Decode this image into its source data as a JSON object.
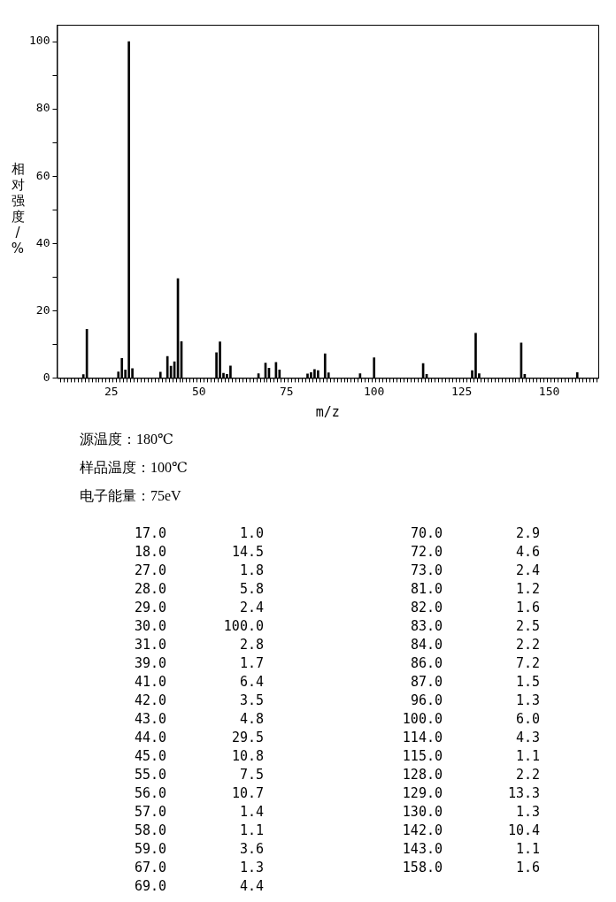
{
  "chart_data": [
    {
      "type": "bar",
      "xlabel": "m/z",
      "ylabel": "相对强度/%",
      "x": [
        17,
        18,
        27,
        28,
        29,
        30,
        31,
        39,
        41,
        42,
        43,
        44,
        45,
        55,
        56,
        57,
        58,
        59,
        67,
        69,
        70,
        72,
        73,
        81,
        82,
        83,
        84,
        86,
        87,
        96,
        100,
        114,
        115,
        128,
        129,
        130,
        142,
        143,
        158
      ],
      "values": [
        1.0,
        14.5,
        1.8,
        5.8,
        2.4,
        100.0,
        2.8,
        1.7,
        6.4,
        3.5,
        4.8,
        29.5,
        10.8,
        7.5,
        10.7,
        1.4,
        1.1,
        3.6,
        1.3,
        4.4,
        2.9,
        4.6,
        2.4,
        1.2,
        1.6,
        2.5,
        2.2,
        7.2,
        1.5,
        1.3,
        6.0,
        4.3,
        1.1,
        2.2,
        13.3,
        1.3,
        10.4,
        1.1,
        1.6
      ],
      "color": "#000000",
      "xlim": [
        10,
        163.5
      ],
      "ylim": [
        0,
        105
      ],
      "yticks": [
        0,
        {
          "value": 10,
          "label": null
        },
        20,
        {
          "value": 30,
          "label": null
        },
        40,
        {
          "value": 50,
          "label": null
        },
        60,
        {
          "value": 70,
          "label": null
        },
        80,
        {
          "value": 90,
          "label": null
        },
        100
      ],
      "xticks": [
        {
          "value": 11,
          "label": null
        },
        {
          "value": 12,
          "label": null
        },
        {
          "value": 13,
          "label": null
        },
        {
          "value": 14,
          "label": null
        },
        {
          "value": 15,
          "label": null
        },
        {
          "value": 16,
          "label": null
        },
        {
          "value": 17,
          "label": null
        },
        {
          "value": 18,
          "label": null
        },
        {
          "value": 19,
          "label": null
        },
        {
          "value": 20,
          "label": null
        },
        {
          "value": 21,
          "label": null
        },
        {
          "value": 22,
          "label": null
        },
        {
          "value": 23,
          "label": null
        },
        {
          "value": 24,
          "label": null
        },
        25,
        {
          "value": 26,
          "label": null
        },
        {
          "value": 27,
          "label": null
        },
        {
          "value": 28,
          "label": null
        },
        {
          "value": 29,
          "label": null
        },
        {
          "value": 30,
          "label": null
        },
        {
          "value": 31,
          "label": null
        },
        {
          "value": 32,
          "label": null
        },
        {
          "value": 33,
          "label": null
        },
        {
          "value": 34,
          "label": null
        },
        {
          "value": 35,
          "label": null
        },
        {
          "value": 36,
          "label": null
        },
        {
          "value": 37,
          "label": null
        },
        {
          "value": 38,
          "label": null
        },
        {
          "value": 39,
          "label": null
        },
        {
          "value": 40,
          "label": null
        },
        {
          "value": 41,
          "label": null
        },
        {
          "value": 42,
          "label": null
        },
        {
          "value": 43,
          "label": null
        },
        {
          "value": 44,
          "label": null
        },
        {
          "value": 45,
          "label": null
        },
        {
          "value": 46,
          "label": null
        },
        {
          "value": 47,
          "label": null
        },
        {
          "value": 48,
          "label": null
        },
        {
          "value": 49,
          "label": null
        },
        50,
        {
          "value": 51,
          "label": null
        },
        {
          "value": 52,
          "label": null
        },
        {
          "value": 53,
          "label": null
        },
        {
          "value": 54,
          "label": null
        },
        {
          "value": 55,
          "label": null
        },
        {
          "value": 56,
          "label": null
        },
        {
          "value": 57,
          "label": null
        },
        {
          "value": 58,
          "label": null
        },
        {
          "value": 59,
          "label": null
        },
        {
          "value": 60,
          "label": null
        },
        {
          "value": 61,
          "label": null
        },
        {
          "value": 62,
          "label": null
        },
        {
          "value": 63,
          "label": null
        },
        {
          "value": 64,
          "label": null
        },
        {
          "value": 65,
          "label": null
        },
        {
          "value": 66,
          "label": null
        },
        {
          "value": 67,
          "label": null
        },
        {
          "value": 68,
          "label": null
        },
        {
          "value": 69,
          "label": null
        },
        {
          "value": 70,
          "label": null
        },
        {
          "value": 71,
          "label": null
        },
        {
          "value": 72,
          "label": null
        },
        {
          "value": 73,
          "label": null
        },
        {
          "value": 74,
          "label": null
        },
        75,
        {
          "value": 76,
          "label": null
        },
        {
          "value": 77,
          "label": null
        },
        {
          "value": 78,
          "label": null
        },
        {
          "value": 79,
          "label": null
        },
        {
          "value": 80,
          "label": null
        },
        {
          "value": 81,
          "label": null
        },
        {
          "value": 82,
          "label": null
        },
        {
          "value": 83,
          "label": null
        },
        {
          "value": 84,
          "label": null
        },
        {
          "value": 85,
          "label": null
        },
        {
          "value": 86,
          "label": null
        },
        {
          "value": 87,
          "label": null
        },
        {
          "value": 88,
          "label": null
        },
        {
          "value": 89,
          "label": null
        },
        {
          "value": 90,
          "label": null
        },
        {
          "value": 91,
          "label": null
        },
        {
          "value": 92,
          "label": null
        },
        {
          "value": 93,
          "label": null
        },
        {
          "value": 94,
          "label": null
        },
        {
          "value": 95,
          "label": null
        },
        {
          "value": 96,
          "label": null
        },
        {
          "value": 97,
          "label": null
        },
        {
          "value": 98,
          "label": null
        },
        {
          "value": 99,
          "label": null
        },
        100,
        {
          "value": 101,
          "label": null
        },
        {
          "value": 102,
          "label": null
        },
        {
          "value": 103,
          "label": null
        },
        {
          "value": 104,
          "label": null
        },
        {
          "value": 105,
          "label": null
        },
        {
          "value": 106,
          "label": null
        },
        {
          "value": 107,
          "label": null
        },
        {
          "value": 108,
          "label": null
        },
        {
          "value": 109,
          "label": null
        },
        {
          "value": 110,
          "label": null
        },
        {
          "value": 111,
          "label": null
        },
        {
          "value": 112,
          "label": null
        },
        {
          "value": 113,
          "label": null
        },
        {
          "value": 114,
          "label": null
        },
        {
          "value": 115,
          "label": null
        },
        {
          "value": 116,
          "label": null
        },
        {
          "value": 117,
          "label": null
        },
        {
          "value": 118,
          "label": null
        },
        {
          "value": 119,
          "label": null
        },
        {
          "value": 120,
          "label": null
        },
        {
          "value": 121,
          "label": null
        },
        {
          "value": 122,
          "label": null
        },
        {
          "value": 123,
          "label": null
        },
        {
          "value": 124,
          "label": null
        },
        125,
        {
          "value": 126,
          "label": null
        },
        {
          "value": 127,
          "label": null
        },
        {
          "value": 128,
          "label": null
        },
        {
          "value": 129,
          "label": null
        },
        {
          "value": 130,
          "label": null
        },
        {
          "value": 131,
          "label": null
        },
        {
          "value": 132,
          "label": null
        },
        {
          "value": 133,
          "label": null
        },
        {
          "value": 134,
          "label": null
        },
        {
          "value": 135,
          "label": null
        },
        {
          "value": 136,
          "label": null
        },
        {
          "value": 137,
          "label": null
        },
        {
          "value": 138,
          "label": null
        },
        {
          "value": 139,
          "label": null
        },
        {
          "value": 140,
          "label": null
        },
        {
          "value": 141,
          "label": null
        },
        {
          "value": 142,
          "label": null
        },
        {
          "value": 143,
          "label": null
        },
        {
          "value": 144,
          "label": null
        },
        {
          "value": 145,
          "label": null
        },
        {
          "value": 146,
          "label": null
        },
        {
          "value": 147,
          "label": null
        },
        {
          "value": 148,
          "label": null
        },
        {
          "value": 149,
          "label": null
        },
        150,
        {
          "value": 151,
          "label": null
        },
        {
          "value": 152,
          "label": null
        },
        {
          "value": 153,
          "label": null
        },
        {
          "value": 154,
          "label": null
        },
        {
          "value": 155,
          "label": null
        },
        {
          "value": 156,
          "label": null
        },
        {
          "value": 157,
          "label": null
        },
        {
          "value": 158,
          "label": null
        },
        {
          "value": 159,
          "label": null
        },
        {
          "value": 160,
          "label": null
        },
        {
          "value": 161,
          "label": null
        },
        {
          "value": 162,
          "label": null
        },
        {
          "value": 163,
          "label": null
        }
      ],
      "annotations": [
        "源温度：180℃",
        "样品温度：100℃",
        "电子能量：75eV"
      ]
    },
    {
      "type": "other",
      "annotations": [
        "17.0",
        "1.0",
        "70.0",
        "2.9",
        "18.0",
        "14.5",
        "72.0",
        "4.6",
        "27.0",
        "1.8",
        "73.0",
        "2.4",
        "28.0",
        "5.8",
        "81.0",
        "1.2",
        "29.0",
        "2.4",
        "82.0",
        "1.6",
        "30.0",
        "100.0",
        "83.0",
        "2.5",
        "31.0",
        "2.8",
        "84.0",
        "2.2",
        "39.0",
        "1.7",
        "86.0",
        "7.2",
        "41.0",
        "6.4",
        "87.0",
        "1.5",
        "42.0",
        "3.5",
        "96.0",
        "1.3",
        "43.0",
        "4.8",
        "100.0",
        "6.0",
        "44.0",
        "29.5",
        "114.0",
        "4.3",
        "45.0",
        "10.8",
        "115.0",
        "1.1",
        "55.0",
        "7.5",
        "128.0",
        "2.2",
        "56.0",
        "10.7",
        "129.0",
        "13.3",
        "57.0",
        "1.4",
        "130.0",
        "1.3",
        "58.0",
        "1.1",
        "142.0",
        "10.4",
        "59.0",
        "3.6",
        "143.0",
        "1.1",
        "67.0",
        "1.3",
        "158.0",
        "1.6",
        "69.0",
        "4.4"
      ]
    }
  ]
}
